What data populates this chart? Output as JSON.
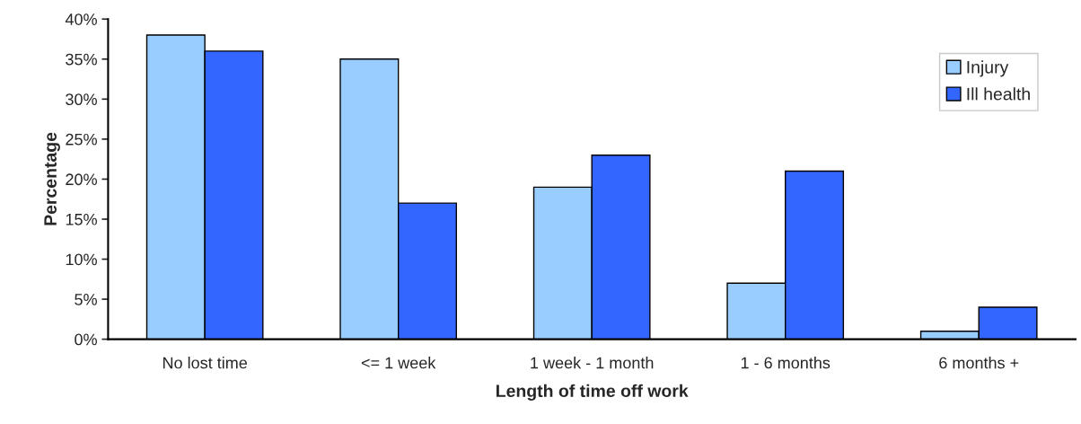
{
  "chart_data": {
    "type": "bar",
    "xlabel": "Length of time off work",
    "ylabel": "Percentage",
    "categories": [
      "No lost time",
      "<= 1 week",
      "1 week - 1 month",
      "1 - 6 months",
      "6 months +"
    ],
    "series": [
      {
        "name": "Injury",
        "color": "#99ccff",
        "values": [
          38,
          35,
          19,
          7,
          1
        ]
      },
      {
        "name": "Ill health",
        "color": "#3366ff",
        "values": [
          36,
          17,
          23,
          21,
          4
        ]
      }
    ],
    "ylim": [
      0,
      40
    ],
    "yticks": [
      {
        "value": 0,
        "label": "0%"
      },
      {
        "value": 5,
        "label": "5%"
      },
      {
        "value": 10,
        "label": "10%"
      },
      {
        "value": 15,
        "label": "15%"
      },
      {
        "value": 20,
        "label": "20%"
      },
      {
        "value": 25,
        "label": "25%"
      },
      {
        "value": 30,
        "label": "30%"
      },
      {
        "value": 35,
        "label": "35%"
      },
      {
        "value": 40,
        "label": "40%"
      }
    ],
    "grid": false,
    "legend": "top right"
  }
}
